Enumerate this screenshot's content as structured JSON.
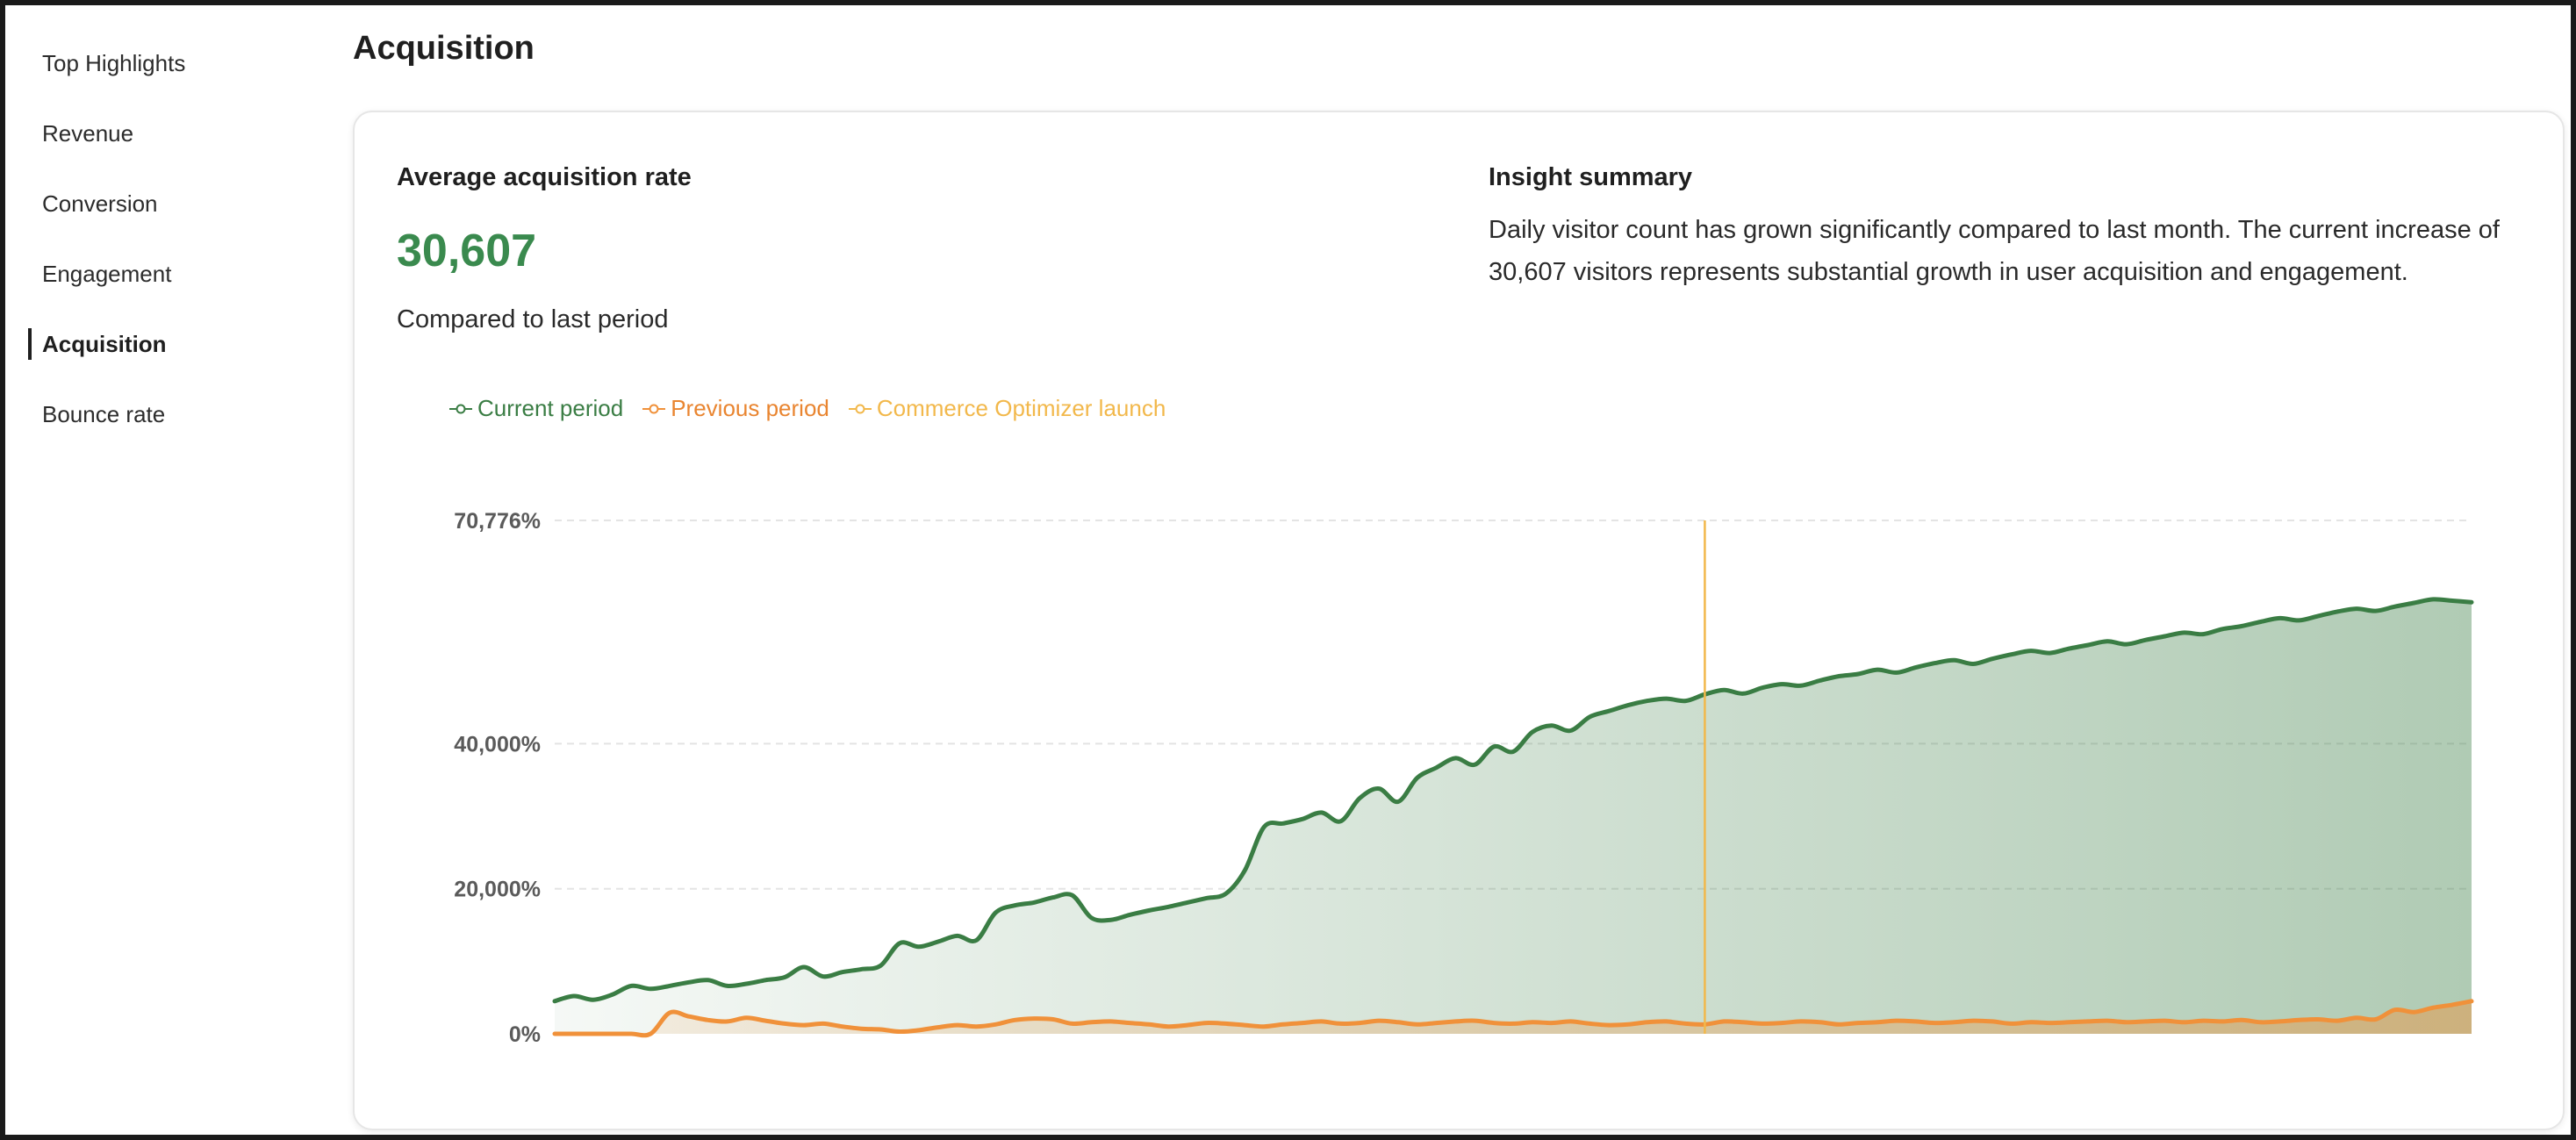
{
  "page": {
    "title": "Acquisition"
  },
  "sidebar": {
    "items": [
      {
        "label": "Top Highlights",
        "active": false
      },
      {
        "label": "Revenue",
        "active": false
      },
      {
        "label": "Conversion",
        "active": false
      },
      {
        "label": "Engagement",
        "active": false
      },
      {
        "label": "Acquisition",
        "active": true
      },
      {
        "label": "Bounce rate",
        "active": false
      }
    ]
  },
  "metric": {
    "label": "Average acquisition rate",
    "value": "30,607",
    "comparison": "Compared to last period"
  },
  "insight": {
    "title": "Insight summary",
    "text": "Daily visitor count has grown significantly compared to last month. The current increase of 30,607 visitors represents substantial growth in user acquisition and engagement."
  },
  "colors": {
    "current": "#3a7d44",
    "previous": "#f0913a",
    "launch": "#f2b84b",
    "value": "#3a8a4e"
  },
  "chart_data": {
    "type": "line",
    "legend_position": "top-left",
    "grid": true,
    "y_ticks": [
      {
        "value": 0,
        "label": "0%"
      },
      {
        "value": 20000,
        "label": "20,000%"
      },
      {
        "value": 40000,
        "label": "40,000%"
      },
      {
        "value": 70776,
        "label": "70,776%"
      }
    ],
    "ylim": [
      0,
      70776
    ],
    "x": [
      0,
      1,
      2,
      3,
      4,
      5,
      6,
      7,
      8,
      9,
      10,
      11,
      12,
      13,
      14,
      15,
      16,
      17,
      18,
      19,
      20,
      21,
      22,
      23,
      24,
      25,
      26,
      27,
      28,
      29,
      30,
      31,
      32,
      33,
      34,
      35,
      36,
      37,
      38,
      39,
      40,
      41,
      42,
      43,
      44,
      45,
      46,
      47,
      48,
      49,
      50,
      51,
      52,
      53,
      54,
      55,
      56,
      57,
      58,
      59,
      60,
      61,
      62,
      63,
      64,
      65,
      66,
      67,
      68,
      69,
      70,
      71,
      72,
      73,
      74,
      75,
      76,
      77,
      78,
      79,
      80,
      81,
      82,
      83,
      84,
      85,
      86,
      87,
      88,
      89,
      90,
      91,
      92,
      93,
      94,
      95,
      96,
      97,
      98,
      99,
      100
    ],
    "series": [
      {
        "name": "Current period",
        "values": [
          4500,
          5200,
          4700,
          5400,
          6600,
          6200,
          6600,
          7100,
          7400,
          6600,
          6900,
          7400,
          7800,
          9200,
          7900,
          8500,
          8900,
          9400,
          12500,
          12000,
          12700,
          13500,
          12900,
          16700,
          17700,
          18100,
          18800,
          19100,
          16000,
          15700,
          16400,
          17000,
          17500,
          18100,
          18700,
          19300,
          22500,
          28500,
          29000,
          29600,
          30500,
          29300,
          32500,
          33800,
          32000,
          35300,
          36700,
          38000,
          37100,
          39600,
          38900,
          41600,
          42500,
          41800,
          43700,
          44500,
          45300,
          45900,
          46200,
          45900,
          46800,
          47400,
          46900,
          47700,
          48200,
          48000,
          48700,
          49300,
          49600,
          50200,
          49800,
          50500,
          51100,
          51500,
          51000,
          51700,
          52300,
          52800,
          52500,
          53100,
          53600,
          54100,
          53700,
          54300,
          54800,
          55300,
          55100,
          55800,
          56200,
          56800,
          57300,
          57000,
          57600,
          58200,
          58600,
          58300,
          58900,
          59400,
          59900,
          59700,
          59500
        ]
      },
      {
        "name": "Previous period",
        "values": [
          0,
          0,
          0,
          0,
          0,
          0,
          2900,
          2400,
          1900,
          1700,
          2200,
          1800,
          1400,
          1200,
          1400,
          1000,
          700,
          600,
          300,
          500,
          900,
          1200,
          1000,
          1300,
          1900,
          2100,
          2000,
          1400,
          1600,
          1700,
          1500,
          1300,
          1000,
          1200,
          1500,
          1400,
          1200,
          1000,
          1300,
          1500,
          1700,
          1400,
          1500,
          1800,
          1600,
          1300,
          1500,
          1700,
          1800,
          1500,
          1400,
          1600,
          1500,
          1700,
          1400,
          1200,
          1300,
          1600,
          1700,
          1400,
          1300,
          1700,
          1600,
          1400,
          1500,
          1700,
          1600,
          1300,
          1500,
          1600,
          1800,
          1700,
          1500,
          1600,
          1800,
          1700,
          1400,
          1600,
          1500,
          1600,
          1700,
          1800,
          1600,
          1700,
          1800,
          1600,
          1800,
          1700,
          1900,
          1600,
          1700,
          1900,
          2000,
          1800,
          2200,
          2000,
          3300,
          3000,
          3600,
          4000,
          4500
        ]
      }
    ],
    "annotations": [
      {
        "label": "Commerce Optimizer launch",
        "x": 60
      }
    ]
  }
}
